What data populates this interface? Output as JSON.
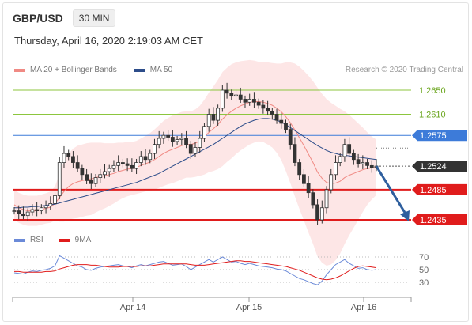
{
  "header": {
    "symbol": "GBP/USD",
    "timeframe": "30 MIN"
  },
  "datetime": "Thursday, April 16, 2020 2:19:03 AM CET",
  "legend_main": [
    {
      "label": "MA 20 + Bollinger Bands",
      "color": "#f08a84"
    },
    {
      "label": "MA 50",
      "color": "#2d4d8a"
    }
  ],
  "legend_rsi": [
    {
      "label": "RSI",
      "color": "#6b8ad8"
    },
    {
      "label": "9MA",
      "color": "#e01c1c"
    }
  ],
  "credit": "Research © 2020 Trading Central",
  "chart_data": [
    {
      "type": "candlestick",
      "title": "GBP/USD",
      "x_ticks": [
        "Apr 14",
        "Apr 15",
        "Apr 16"
      ],
      "ylim": [
        1.24,
        1.268
      ],
      "levels": [
        {
          "value": "1.2650",
          "kind": "resistance",
          "color": "#8cc63e"
        },
        {
          "value": "1.2610",
          "kind": "resistance",
          "color": "#8cc63e"
        },
        {
          "value": "1.2575",
          "kind": "pivot",
          "color": "#3d7bd9"
        },
        {
          "value": "1.2524",
          "kind": "last",
          "color": "#333333"
        },
        {
          "value": "1.2485",
          "kind": "support",
          "color": "#e01c1c"
        },
        {
          "value": "1.2435",
          "kind": "support",
          "color": "#e01c1c"
        }
      ],
      "arrow": {
        "from": 1.2524,
        "to": 1.2435,
        "direction": "down",
        "color": "#2f5f9e"
      },
      "close": [
        1.245,
        1.2445,
        1.2442,
        1.2448,
        1.2452,
        1.245,
        1.2455,
        1.2458,
        1.2462,
        1.2475,
        1.253,
        1.2545,
        1.254,
        1.253,
        1.252,
        1.251,
        1.25,
        1.2495,
        1.2505,
        1.251,
        1.2515,
        1.252,
        1.2525,
        1.253,
        1.2528,
        1.2525,
        1.252,
        1.253,
        1.254,
        1.2535,
        1.2545,
        1.256,
        1.257,
        1.2575,
        1.2572,
        1.2565,
        1.2568,
        1.257,
        1.256,
        1.2545,
        1.2555,
        1.257,
        1.259,
        1.261,
        1.26,
        1.262,
        1.265,
        1.2645,
        1.264,
        1.2642,
        1.2635,
        1.263,
        1.2635,
        1.263,
        1.2625,
        1.262,
        1.2615,
        1.261,
        1.26,
        1.2595,
        1.2585,
        1.256,
        1.253,
        1.251,
        1.2495,
        1.248,
        1.246,
        1.2435,
        1.2455,
        1.2485,
        1.251,
        1.253,
        1.254,
        1.256,
        1.2545,
        1.2535,
        1.2528,
        1.253,
        1.2525,
        1.2522,
        1.2524
      ],
      "ma20": [
        1.246,
        1.2455,
        1.2452,
        1.245,
        1.245,
        1.245,
        1.2452,
        1.2454,
        1.2456,
        1.2462,
        1.2472,
        1.2482,
        1.249,
        1.2495,
        1.2498,
        1.25,
        1.2502,
        1.2503,
        1.2505,
        1.2507,
        1.2508,
        1.251,
        1.2512,
        1.2515,
        1.2517,
        1.2519,
        1.252,
        1.2522,
        1.2525,
        1.2528,
        1.2531,
        1.2535,
        1.254,
        1.2545,
        1.2549,
        1.2552,
        1.2555,
        1.2558,
        1.256,
        1.256,
        1.2562,
        1.2566,
        1.2572,
        1.258,
        1.2586,
        1.2593,
        1.2602,
        1.2609,
        1.2615,
        1.262,
        1.2624,
        1.2627,
        1.263,
        1.2631,
        1.2631,
        1.263,
        1.2628,
        1.2625,
        1.262,
        1.2614,
        1.2606,
        1.2596,
        1.2584,
        1.2571,
        1.2558,
        1.2544,
        1.253,
        1.2514,
        1.2504,
        1.2497,
        1.2495,
        1.2496,
        1.2499,
        1.2505,
        1.2509,
        1.2512,
        1.2515,
        1.2518,
        1.252,
        1.2521,
        1.2522
      ],
      "ma50": [
        1.2455,
        1.2455,
        1.2456,
        1.2456,
        1.2457,
        1.2457,
        1.2458,
        1.2459,
        1.246,
        1.2461,
        1.2463,
        1.2465,
        1.2467,
        1.2469,
        1.2471,
        1.2473,
        1.2475,
        1.2477,
        1.2479,
        1.2481,
        1.2483,
        1.2485,
        1.2487,
        1.2489,
        1.2491,
        1.2493,
        1.2495,
        1.2497,
        1.25,
        1.2503,
        1.2506,
        1.2509,
        1.2512,
        1.2516,
        1.252,
        1.2524,
        1.2528,
        1.2532,
        1.2536,
        1.254,
        1.2544,
        1.2548,
        1.2552,
        1.2556,
        1.256,
        1.2565,
        1.257,
        1.2575,
        1.258,
        1.2585,
        1.259,
        1.2594,
        1.2597,
        1.26,
        1.2602,
        1.2603,
        1.2603,
        1.2602,
        1.26,
        1.2597,
        1.2593,
        1.2588,
        1.2583,
        1.2578,
        1.2573,
        1.2568,
        1.2563,
        1.2558,
        1.2554,
        1.255,
        1.2547,
        1.2545,
        1.2543,
        1.2542,
        1.2541,
        1.254,
        1.2539,
        1.2538,
        1.2537,
        1.2536,
        1.2535
      ],
      "bb_width": [
        0.0025,
        0.0025,
        0.0025,
        0.0025,
        0.0025,
        0.0025,
        0.0025,
        0.0025,
        0.0026,
        0.0028,
        0.004,
        0.005,
        0.0055,
        0.0058,
        0.006,
        0.006,
        0.006,
        0.006,
        0.0058,
        0.0056,
        0.0054,
        0.0052,
        0.005,
        0.0048,
        0.0046,
        0.0045,
        0.0044,
        0.0044,
        0.0045,
        0.0046,
        0.0048,
        0.005,
        0.0052,
        0.0054,
        0.0055,
        0.0056,
        0.0056,
        0.0056,
        0.0055,
        0.0055,
        0.0056,
        0.0058,
        0.0062,
        0.0066,
        0.007,
        0.0074,
        0.0078,
        0.0078,
        0.0078,
        0.0076,
        0.0074,
        0.0072,
        0.007,
        0.0068,
        0.0066,
        0.0066,
        0.0068,
        0.007,
        0.0074,
        0.008,
        0.009,
        0.01,
        0.011,
        0.0118,
        0.0124,
        0.013,
        0.0135,
        0.014,
        0.014,
        0.0138,
        0.0134,
        0.0128,
        0.012,
        0.011,
        0.01,
        0.009,
        0.008,
        0.007,
        0.006,
        0.0052,
        0.0046
      ]
    },
    {
      "type": "line",
      "title": "RSI",
      "ylim": [
        20,
        80
      ],
      "y_ticks": [
        "70",
        "50",
        "30"
      ],
      "rsi": [
        45,
        44,
        43,
        46,
        48,
        47,
        49,
        50,
        52,
        56,
        72,
        68,
        64,
        60,
        56,
        54,
        50,
        49,
        52,
        54,
        55,
        56,
        57,
        58,
        56,
        55,
        53,
        56,
        58,
        56,
        58,
        60,
        62,
        63,
        60,
        57,
        58,
        59,
        55,
        50,
        54,
        58,
        62,
        66,
        62,
        66,
        70,
        66,
        62,
        63,
        60,
        58,
        60,
        58,
        56,
        55,
        54,
        53,
        51,
        50,
        48,
        44,
        40,
        36,
        34,
        31,
        28,
        26,
        32,
        42,
        50,
        58,
        62,
        66,
        60,
        56,
        52,
        53,
        50,
        49,
        50
      ],
      "ma9": [
        47,
        47,
        46,
        46,
        46,
        46,
        46,
        47,
        47,
        48,
        51,
        53,
        55,
        57,
        58,
        58,
        58,
        57,
        57,
        56,
        55,
        54,
        54,
        54,
        55,
        55,
        55,
        55,
        56,
        56,
        56,
        57,
        58,
        59,
        59,
        59,
        59,
        59,
        59,
        58,
        57,
        57,
        57,
        58,
        59,
        60,
        61,
        62,
        63,
        64,
        64,
        63,
        63,
        62,
        61,
        60,
        59,
        58,
        57,
        56,
        55,
        53,
        51,
        49,
        46,
        43,
        40,
        37,
        35,
        34,
        35,
        37,
        40,
        44,
        48,
        52,
        55,
        56,
        55,
        54,
        53
      ]
    }
  ]
}
